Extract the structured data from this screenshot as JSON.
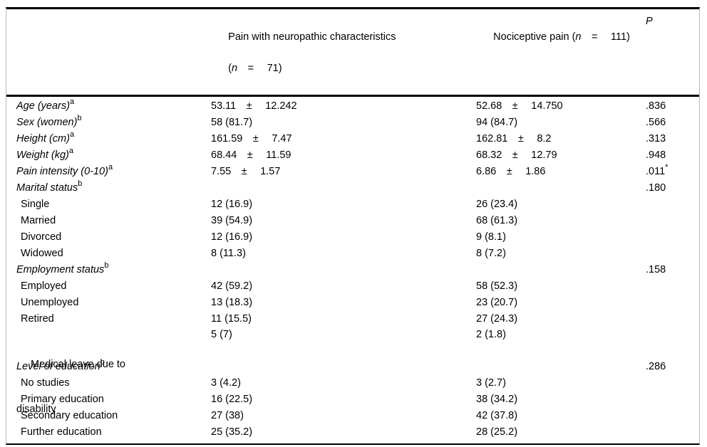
{
  "table": {
    "header": {
      "col2": {
        "title": "Pain with neuropathic characteristics",
        "n_open": "(",
        "n": "n",
        "n_rest": " =  71)"
      },
      "col3": {
        "pre": "Nociceptive pain (",
        "n": "n",
        "n_rest": " =  111)"
      },
      "p": "P"
    },
    "rows": [
      {
        "label": "Age (years)",
        "sup": "a",
        "c2": "53.11 ±  12.242",
        "c3": "52.68 ±  14.750",
        "p": ".836"
      },
      {
        "label": "Sex (women)",
        "sup": "b",
        "c2": "58 (81.7)",
        "c3": "94 (84.7)",
        "p": ".566"
      },
      {
        "label": "Height (cm)",
        "sup": "a",
        "c2": "161.59 ±  7.47",
        "c3": "162.81 ±  8.2",
        "p": ".313"
      },
      {
        "label": "Weight (kg)",
        "sup": "a",
        "c2": "68.44 ±  11.59",
        "c3": "68.32 ±  12.79",
        "p": ".948"
      },
      {
        "label": "Pain intensity (0-10)",
        "sup": "a",
        "c2": "7.55 ±  1.57",
        "c3": "6.86 ±  1.86",
        "p": ".011",
        "p_sup": "*"
      },
      {
        "label": "Marital status",
        "sup": "b",
        "p": ".180"
      },
      {
        "label": "Single",
        "c2": "12 (16.9)",
        "c3": "26 (23.4)"
      },
      {
        "label": "Married",
        "c2": "39 (54.9)",
        "c3": "68 (61.3)"
      },
      {
        "label": "Divorced",
        "c2": "12 (16.9)",
        "c3": "9 (8.1)"
      },
      {
        "label": "Widowed",
        "c2": "8 (11.3)",
        "c3": "8 (7.2)"
      },
      {
        "label": "Employment status",
        "sup": "b",
        "p": ".158"
      },
      {
        "label": "Employed",
        "c2": "42 (59.2)",
        "c3": "58 (52.3)"
      },
      {
        "label": "Unemployed",
        "c2": "13 (18.3)",
        "c3": "23 (20.7)"
      },
      {
        "label": "Retired",
        "c2": "11 (15.5)",
        "c3": "27 (24.3)"
      },
      {
        "label": "Medical leave due to",
        "label2": "disability",
        "c2": "5 (7)",
        "c3": "2 (1.8)"
      },
      {
        "label": "Level of education",
        "sup": "b",
        "p": ".286"
      },
      {
        "label": "No studies",
        "c2": "3 (4.2)",
        "c3": "3 (2.7)"
      },
      {
        "label": "Primary education",
        "c2": "16 (22.5)",
        "c3": "38 (34.2)"
      },
      {
        "label": "Secondary education",
        "c2": "27 (38)",
        "c3": "42 (37.8)"
      },
      {
        "label": "Further education",
        "c2": "25 (35.2)",
        "c3": "28 (25.2)"
      }
    ]
  }
}
